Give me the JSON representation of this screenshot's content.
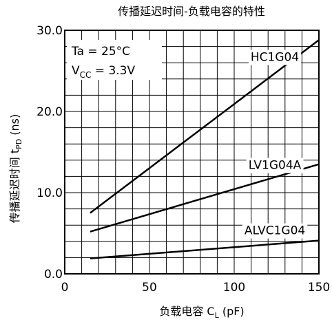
{
  "chart_data": {
    "type": "line",
    "title": "传播延迟时间-负载电容的特性",
    "xlabel": "负载电容 C",
    "xlabel_sub": "L",
    "xlabel_unit": " (pF)",
    "ylabel": "传播延迟时间 t",
    "ylabel_sub": "PD",
    "ylabel_unit": " (ns)",
    "xlim": [
      0,
      150
    ],
    "ylim": [
      0,
      30
    ],
    "x_ticks": [
      0,
      50,
      100,
      150
    ],
    "x_tick_labels": [
      "0",
      "50",
      "100",
      "150"
    ],
    "y_ticks": [
      0,
      10,
      20,
      30
    ],
    "y_tick_labels": [
      "0.0",
      "10.0",
      "20.0",
      "30.0"
    ],
    "grid": true,
    "grid_x_step": 10,
    "grid_y_step": 2,
    "annotation": {
      "line1": "Ta = 25°C",
      "line2_main": "V",
      "line2_sub": "CC",
      "line2_rest": " = 3.3V"
    },
    "series": [
      {
        "name": "HC1G04",
        "x": [
          15,
          150
        ],
        "y": [
          7.5,
          28.8
        ]
      },
      {
        "name": "LV1G04A",
        "x": [
          15,
          150
        ],
        "y": [
          5.2,
          13.5
        ]
      },
      {
        "name": "ALVC1G04",
        "x": [
          15,
          150
        ],
        "y": [
          1.9,
          4.1
        ]
      }
    ]
  }
}
